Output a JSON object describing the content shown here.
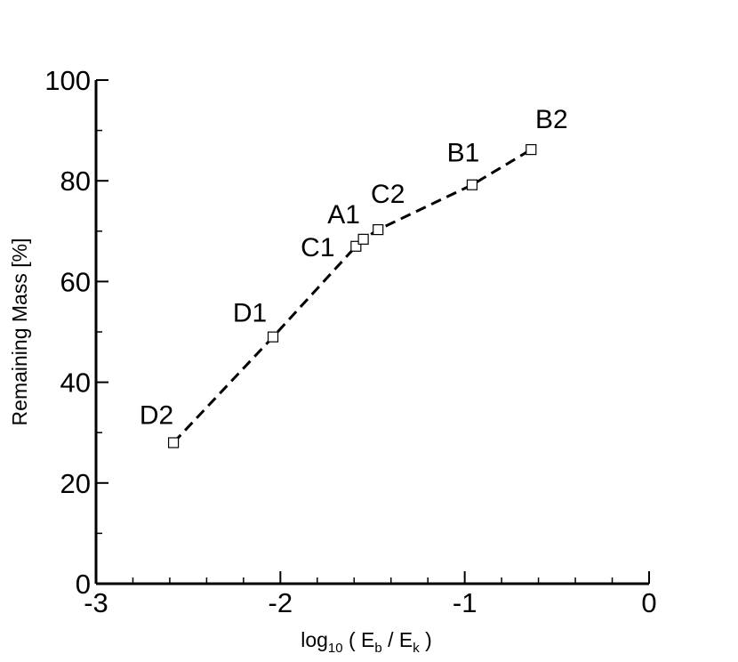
{
  "chart_data": {
    "type": "scatter",
    "xlabel": [
      "log",
      "10",
      " ( E",
      "b",
      " / E",
      "k",
      " )"
    ],
    "ylabel": "Remaining Mass [%]",
    "series": [
      {
        "color": "#000000",
        "x": [
          -2.58,
          -2.04,
          -1.59,
          -1.55,
          -1.47,
          -0.96,
          -0.64
        ],
        "values": [
          28,
          49,
          67,
          68.4,
          70.3,
          79.2,
          86.2
        ],
        "labels": [
          "D2",
          "D1",
          "C1",
          "A1",
          "C2",
          "B1",
          "B2"
        ]
      }
    ],
    "xlim": [
      -3,
      0
    ],
    "xticks": [
      -3,
      -2,
      -1,
      0
    ],
    "xminorticks": [
      -2.8,
      -2.6,
      -2.4,
      -2.2,
      -1.8,
      -1.6,
      -1.4,
      -1.2,
      -0.8,
      -0.6,
      -0.4,
      -0.2
    ],
    "ylim": [
      0,
      100
    ],
    "yticks": [
      0,
      20,
      40,
      60,
      80,
      100
    ],
    "yminorticks": [
      10,
      30,
      50,
      70,
      90
    ],
    "line_style": "dashed"
  }
}
